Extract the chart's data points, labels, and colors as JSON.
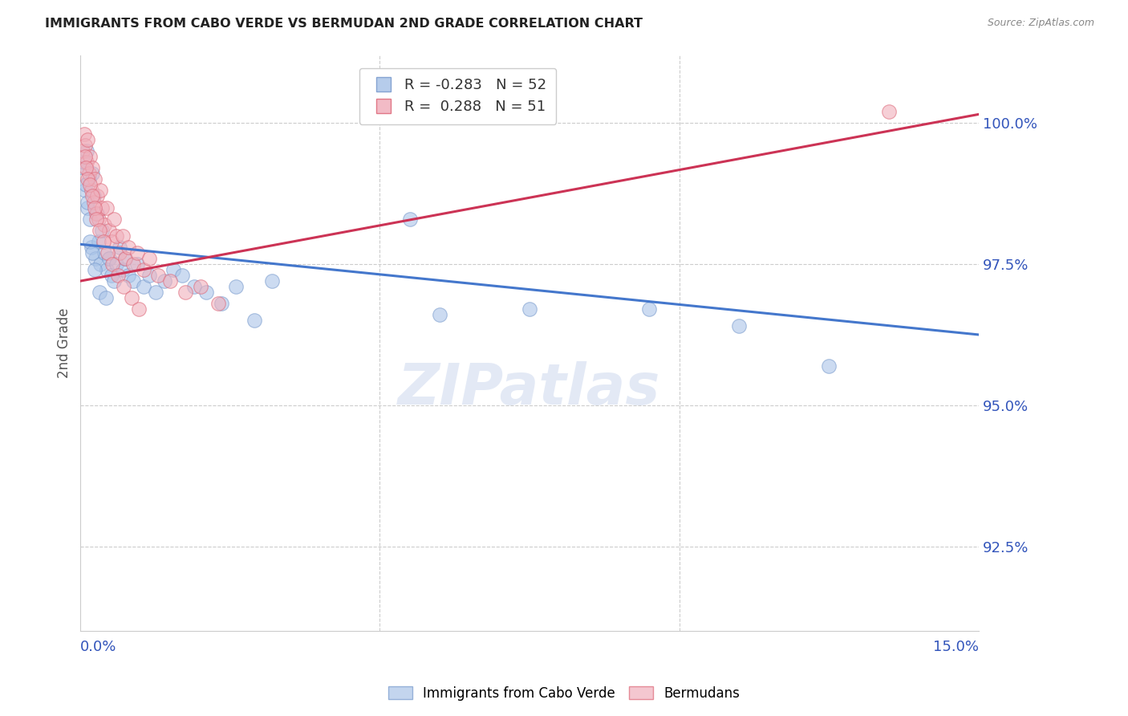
{
  "title": "IMMIGRANTS FROM CABO VERDE VS BERMUDAN 2ND GRADE CORRELATION CHART",
  "source": "Source: ZipAtlas.com",
  "ylabel": "2nd Grade",
  "ylabel_right_ticks": [
    92.5,
    95.0,
    97.5,
    100.0
  ],
  "ylabel_right_labels": [
    "92.5%",
    "95.0%",
    "97.5%",
    "100.0%"
  ],
  "xmin": 0.0,
  "xmax": 15.0,
  "ymin": 91.0,
  "ymax": 101.2,
  "legend_blue_r": "-0.283",
  "legend_blue_n": "52",
  "legend_pink_r": "0.288",
  "legend_pink_n": "51",
  "blue_color": "#aac4e8",
  "pink_color": "#f0b0bc",
  "blue_line_color": "#4477cc",
  "pink_line_color": "#cc3355",
  "watermark": "ZIPatlas",
  "blue_scatter_x": [
    0.05,
    0.08,
    0.1,
    0.12,
    0.14,
    0.16,
    0.18,
    0.2,
    0.22,
    0.25,
    0.28,
    0.3,
    0.33,
    0.36,
    0.4,
    0.44,
    0.48,
    0.52,
    0.56,
    0.6,
    0.65,
    0.7,
    0.75,
    0.8,
    0.88,
    0.95,
    1.05,
    1.15,
    1.25,
    1.4,
    1.55,
    1.7,
    1.9,
    2.1,
    2.35,
    2.6,
    2.9,
    3.2,
    5.5,
    6.0,
    7.5,
    9.5,
    11.0,
    12.5,
    0.06,
    0.09,
    0.11,
    0.15,
    0.19,
    0.24,
    0.32,
    0.42
  ],
  "blue_scatter_y": [
    99.2,
    98.8,
    99.5,
    98.5,
    99.0,
    98.3,
    97.8,
    99.1,
    98.7,
    97.6,
    98.4,
    97.9,
    97.5,
    98.1,
    97.7,
    97.4,
    97.6,
    97.3,
    97.2,
    97.5,
    97.8,
    97.4,
    97.6,
    97.3,
    97.2,
    97.5,
    97.1,
    97.3,
    97.0,
    97.2,
    97.4,
    97.3,
    97.1,
    97.0,
    96.8,
    97.1,
    96.5,
    97.2,
    98.3,
    96.6,
    96.7,
    96.7,
    96.4,
    95.7,
    99.3,
    98.9,
    98.6,
    97.9,
    97.7,
    97.4,
    97.0,
    96.9
  ],
  "pink_scatter_x": [
    0.04,
    0.06,
    0.08,
    0.1,
    0.12,
    0.14,
    0.16,
    0.18,
    0.2,
    0.22,
    0.24,
    0.26,
    0.28,
    0.3,
    0.33,
    0.36,
    0.4,
    0.44,
    0.48,
    0.52,
    0.56,
    0.6,
    0.65,
    0.7,
    0.75,
    0.8,
    0.88,
    0.95,
    1.05,
    1.15,
    1.3,
    1.5,
    1.75,
    2.0,
    2.3,
    0.07,
    0.09,
    0.11,
    0.15,
    0.19,
    0.23,
    0.27,
    0.32,
    0.38,
    0.45,
    0.53,
    0.62,
    0.72,
    0.85,
    0.98,
    13.5
  ],
  "pink_scatter_y": [
    99.5,
    99.8,
    99.6,
    99.3,
    99.7,
    99.1,
    99.4,
    98.8,
    99.2,
    98.6,
    99.0,
    98.4,
    98.7,
    98.3,
    98.8,
    98.5,
    98.2,
    98.5,
    98.1,
    97.9,
    98.3,
    98.0,
    97.7,
    98.0,
    97.6,
    97.8,
    97.5,
    97.7,
    97.4,
    97.6,
    97.3,
    97.2,
    97.0,
    97.1,
    96.8,
    99.4,
    99.2,
    99.0,
    98.9,
    98.7,
    98.5,
    98.3,
    98.1,
    97.9,
    97.7,
    97.5,
    97.3,
    97.1,
    96.9,
    96.7,
    100.2
  ],
  "blue_trend_x": [
    0.0,
    15.0
  ],
  "blue_trend_y": [
    97.85,
    96.25
  ],
  "pink_trend_x": [
    0.0,
    15.0
  ],
  "pink_trend_y": [
    97.2,
    100.15
  ]
}
